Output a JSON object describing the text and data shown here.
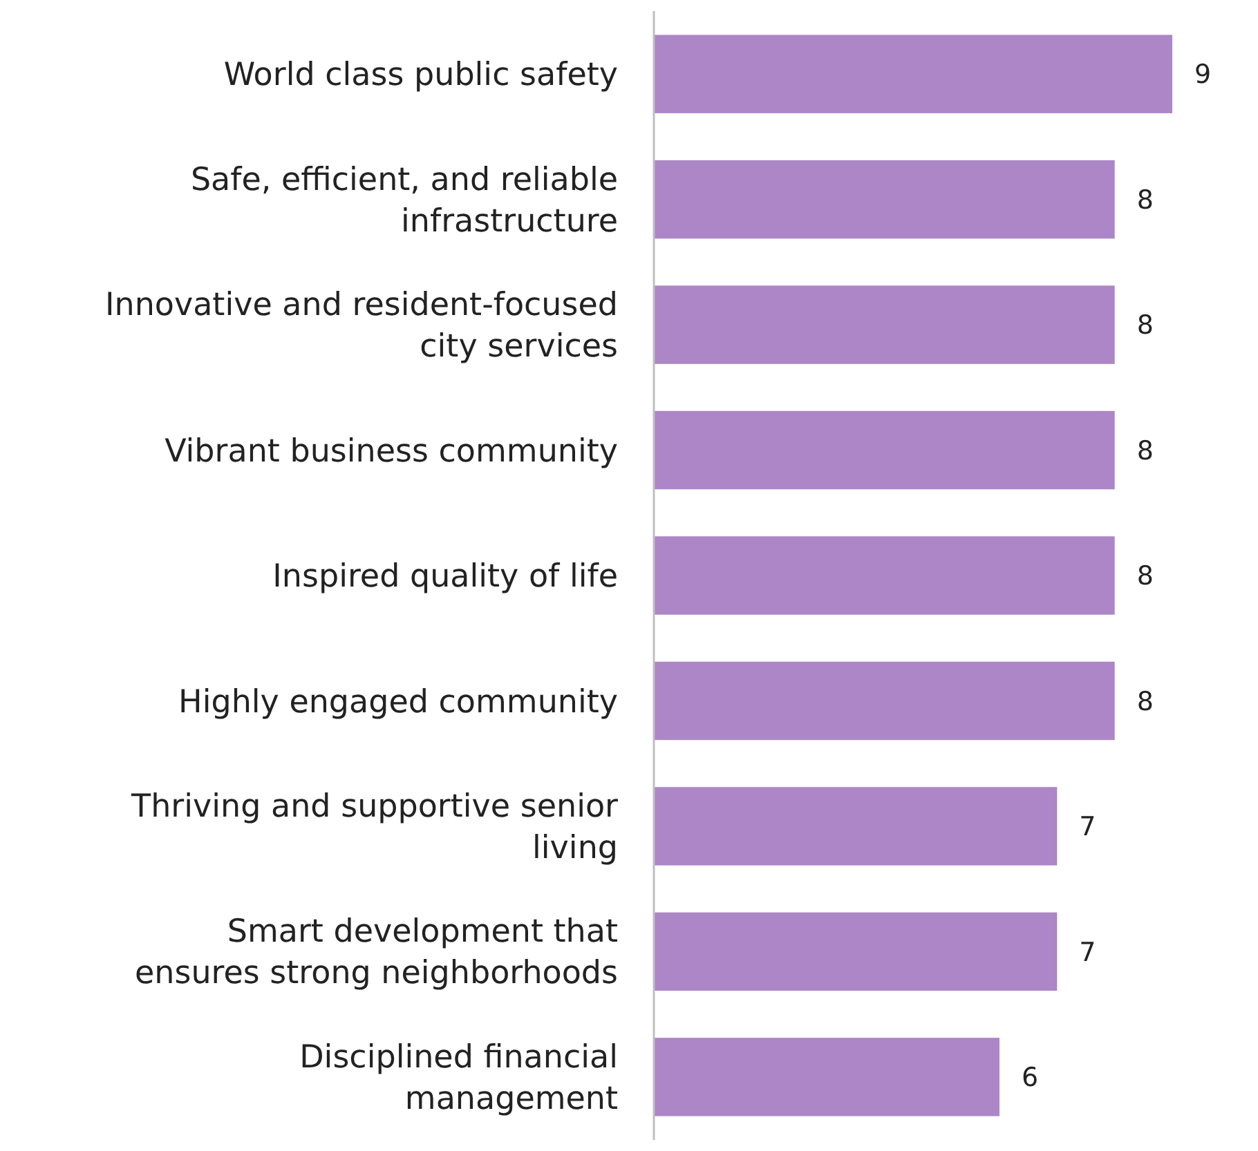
{
  "chart_data": {
    "type": "bar",
    "orientation": "horizontal",
    "data_labels": true,
    "color": "#ac86c6",
    "categories": [
      "World class public safety",
      "Safe, efficient, and reliable infrastructure",
      "Innovative and resident-focused city services",
      "Vibrant business community",
      "Inspired quality of life",
      "Highly engaged community",
      "Thriving and supportive senior living",
      "Smart development that ensures strong neighborhoods",
      "Disciplined financial management"
    ],
    "values": [
      9,
      8,
      8,
      8,
      8,
      8,
      7,
      7,
      6
    ]
  }
}
